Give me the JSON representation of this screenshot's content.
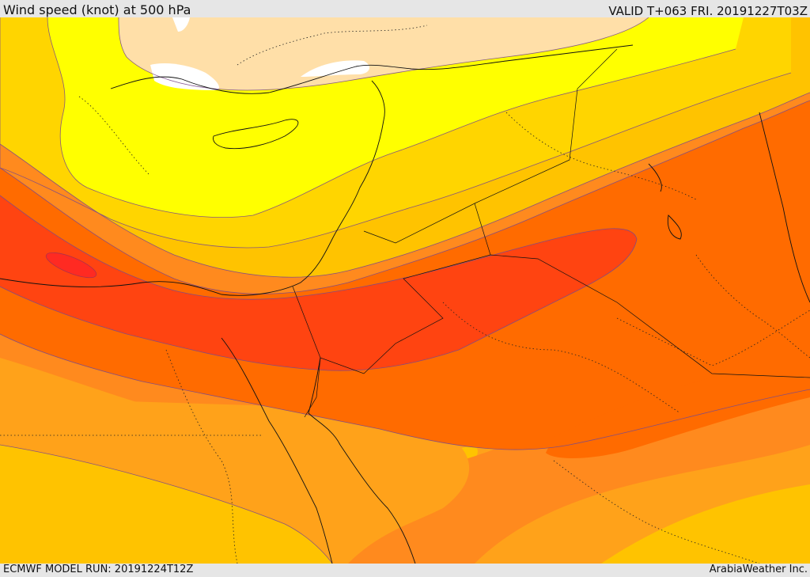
{
  "header": {
    "title": "Wind speed (knot) at 500 hPa",
    "valid_time": "VALID T+063 FRI. 20191227T03Z"
  },
  "footer": {
    "model_run": "ECMWF MODEL RUN: 20191224T12Z",
    "provider": "ArabiaWeather Inc."
  },
  "map_colors": {
    "land_ocean_lowest": "#ffffff",
    "tan_band": "#ffdfa8",
    "yellow_band": "#ffff00",
    "light_orange_band": "#ffd500",
    "mid_orange_band": "#ffc300",
    "orange_band": "#ffa21a",
    "dark_orange_band": "#ff8a1e",
    "red_orange_band": "#ff6b00",
    "red_band": "#ff4411",
    "core_red": "#ff2a22"
  }
}
